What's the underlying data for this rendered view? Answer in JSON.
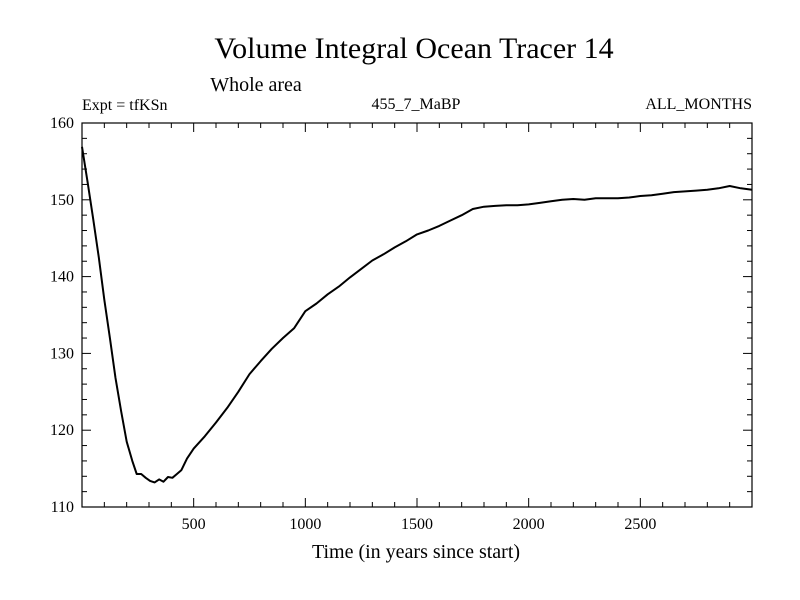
{
  "chart_data": {
    "type": "line",
    "title": "Volume Integral Ocean Tracer 14",
    "subtitle": "Whole area",
    "header_left": "Expt = tfKSn",
    "header_center": "455_7_MaBP",
    "header_right": "ALL_MONTHS",
    "xlabel": "Time (in years since start)",
    "ylabel": "",
    "xlim": [
      0,
      3000
    ],
    "ylim": [
      110,
      160
    ],
    "x_ticks": [
      500,
      1000,
      1500,
      2000,
      2500
    ],
    "y_ticks": [
      110,
      120,
      130,
      140,
      150,
      160
    ],
    "grid": false,
    "series": [
      {
        "name": "Volume integral ocean tracer 14",
        "color": "#000000",
        "points": [
          [
            0,
            156.9
          ],
          [
            25,
            152.3
          ],
          [
            50,
            147.5
          ],
          [
            75,
            142.5
          ],
          [
            100,
            137.0
          ],
          [
            125,
            132.0
          ],
          [
            150,
            126.8
          ],
          [
            175,
            122.5
          ],
          [
            200,
            118.5
          ],
          [
            225,
            116.0
          ],
          [
            245,
            114.3
          ],
          [
            265,
            114.3
          ],
          [
            285,
            113.8
          ],
          [
            305,
            113.4
          ],
          [
            325,
            113.2
          ],
          [
            345,
            113.6
          ],
          [
            365,
            113.3
          ],
          [
            385,
            113.9
          ],
          [
            405,
            113.8
          ],
          [
            425,
            114.3
          ],
          [
            445,
            114.8
          ],
          [
            470,
            116.3
          ],
          [
            500,
            117.6
          ],
          [
            550,
            119.2
          ],
          [
            600,
            121.0
          ],
          [
            650,
            122.9
          ],
          [
            700,
            125.0
          ],
          [
            750,
            127.3
          ],
          [
            800,
            129.0
          ],
          [
            850,
            130.6
          ],
          [
            900,
            132.0
          ],
          [
            950,
            133.3
          ],
          [
            1000,
            135.5
          ],
          [
            1050,
            136.5
          ],
          [
            1100,
            137.7
          ],
          [
            1150,
            138.7
          ],
          [
            1200,
            139.9
          ],
          [
            1250,
            141.0
          ],
          [
            1300,
            142.1
          ],
          [
            1350,
            142.9
          ],
          [
            1400,
            143.8
          ],
          [
            1450,
            144.6
          ],
          [
            1500,
            145.5
          ],
          [
            1550,
            146.0
          ],
          [
            1600,
            146.6
          ],
          [
            1650,
            147.3
          ],
          [
            1700,
            148.0
          ],
          [
            1750,
            148.8
          ],
          [
            1800,
            149.1
          ],
          [
            1850,
            149.2
          ],
          [
            1900,
            149.3
          ],
          [
            1950,
            149.3
          ],
          [
            2000,
            149.4
          ],
          [
            2050,
            149.6
          ],
          [
            2100,
            149.8
          ],
          [
            2150,
            150.0
          ],
          [
            2200,
            150.1
          ],
          [
            2250,
            150.0
          ],
          [
            2300,
            150.2
          ],
          [
            2350,
            150.2
          ],
          [
            2400,
            150.2
          ],
          [
            2450,
            150.3
          ],
          [
            2500,
            150.5
          ],
          [
            2550,
            150.6
          ],
          [
            2600,
            150.8
          ],
          [
            2650,
            151.0
          ],
          [
            2700,
            151.1
          ],
          [
            2750,
            151.2
          ],
          [
            2800,
            151.3
          ],
          [
            2850,
            151.5
          ],
          [
            2900,
            151.8
          ],
          [
            2950,
            151.5
          ],
          [
            3000,
            151.3
          ]
        ]
      }
    ]
  }
}
